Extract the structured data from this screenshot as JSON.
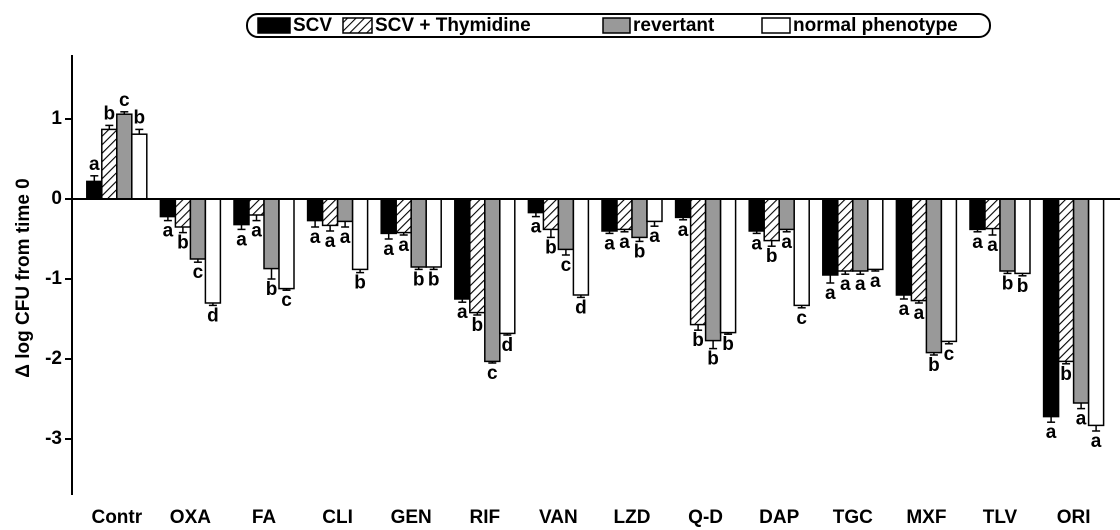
{
  "chart_data": {
    "type": "bar",
    "ylabel": "Δ log CFU from time 0",
    "categories": [
      "Contr",
      "OXA",
      "FA",
      "CLI",
      "GEN",
      "RIF",
      "VAN",
      "LZD",
      "Q-D",
      "DAP",
      "TGC",
      "MXF",
      "TLV",
      "ORI"
    ],
    "series": [
      {
        "name": "SCV",
        "color": "#000000",
        "hatch": false,
        "values": [
          0.22,
          -0.22,
          -0.32,
          -0.27,
          -0.43,
          -1.25,
          -0.17,
          -0.4,
          -0.23,
          -0.4,
          -0.95,
          -1.2,
          -0.38,
          -2.72
        ],
        "errors": [
          0.07,
          0.05,
          0.06,
          0.08,
          0.07,
          0.04,
          0.05,
          0.03,
          0.03,
          0.03,
          0.1,
          0.05,
          0.03,
          0.07
        ],
        "letters": [
          "a",
          "a",
          "a",
          "a",
          "a",
          "a",
          "a",
          "a",
          "a",
          "a",
          "a",
          "a",
          "a",
          "a"
        ]
      },
      {
        "name": "SCV + Thymidine",
        "color": "#ffffff",
        "hatch": true,
        "values": [
          0.87,
          -0.35,
          -0.2,
          -0.33,
          -0.42,
          -1.42,
          -0.38,
          -0.38,
          -1.57,
          -0.52,
          -0.9,
          -1.27,
          -0.37,
          -2.03
        ],
        "errors": [
          0.05,
          0.07,
          0.07,
          0.07,
          0.03,
          0.03,
          0.1,
          0.03,
          0.07,
          0.07,
          0.04,
          0.03,
          0.08,
          0.03
        ],
        "letters": [
          "b",
          "b",
          "a",
          "a",
          "a",
          "b",
          "b",
          "a",
          "b",
          "b",
          "a",
          "a",
          "a",
          "b"
        ]
      },
      {
        "name": "revertant",
        "color": "#999999",
        "hatch": false,
        "values": [
          1.06,
          -0.75,
          -0.87,
          -0.28,
          -0.85,
          -2.03,
          -0.63,
          -0.48,
          -1.77,
          -0.38,
          -0.9,
          -1.92,
          -0.9,
          -2.55
        ],
        "errors": [
          0.03,
          0.04,
          0.13,
          0.07,
          0.03,
          0.02,
          0.07,
          0.05,
          0.1,
          0.03,
          0.04,
          0.03,
          0.03,
          0.07
        ],
        "letters": [
          "c",
          "c",
          "b",
          "a",
          "b",
          "c",
          "c",
          "b",
          "b",
          "a",
          "a",
          "b",
          "b",
          "a"
        ]
      },
      {
        "name": "normal phenotype",
        "color": "#ffffff",
        "hatch": false,
        "values": [
          0.81,
          -1.3,
          -1.12,
          -0.88,
          -0.85,
          -1.68,
          -1.2,
          -0.28,
          -1.67,
          -1.33,
          -0.88,
          -1.78,
          -0.93,
          -2.83
        ],
        "errors": [
          0.06,
          0.03,
          0.02,
          0.04,
          0.03,
          0.02,
          0.03,
          0.06,
          0.02,
          0.03,
          0.02,
          0.03,
          0.03,
          0.07
        ],
        "letters": [
          "b",
          "d",
          "c",
          "b",
          "b",
          "d",
          "d",
          "a",
          "b",
          "c",
          "a",
          "c",
          "b",
          "a"
        ]
      }
    ],
    "ylim": [
      -3.7,
      1.8
    ],
    "yticks": [
      -3,
      -2,
      -1,
      0,
      1
    ]
  }
}
